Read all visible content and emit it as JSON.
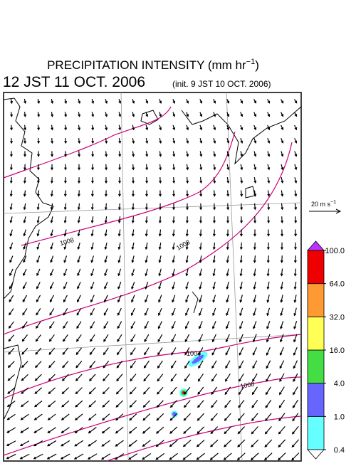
{
  "header": {
    "title": {
      "main": "PRECIPITATION INTENSITY (mm hr",
      "sup": "−1",
      "close": ")"
    },
    "valid_time": "12 JST 11 OCT. 2006",
    "init_time": "(init. 9 JST 10 OCT. 2006)"
  },
  "wind_legend": {
    "main": "20 m s",
    "sup": "−1"
  },
  "isobar_labels": [
    "1008",
    "1008",
    "1004",
    "1008"
  ],
  "colorbar": {
    "levels": [
      {
        "value": 0.4,
        "label": "0.4"
      },
      {
        "value": 1,
        "label": "1.0"
      },
      {
        "value": 4,
        "label": "4.0"
      },
      {
        "value": 16,
        "label": "16.0"
      },
      {
        "value": 32,
        "label": "32.0"
      },
      {
        "value": 64,
        "label": "64.0"
      },
      {
        "value": 100,
        "label": "100.0"
      }
    ],
    "colors": [
      "#66ffff",
      "#6666ff",
      "#44dd44",
      "#ffff55",
      "#ff9933",
      "#ee0000"
    ],
    "under_color": "#ffffff",
    "over_color": "#bb33ff"
  }
}
